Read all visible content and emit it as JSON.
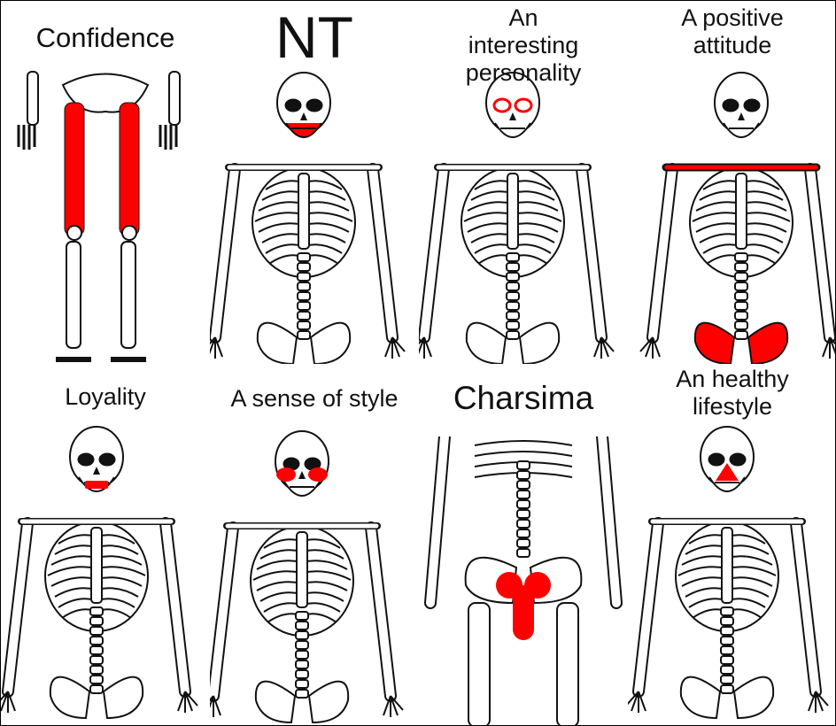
{
  "panels": [
    {
      "label": "Confidence",
      "highlight": "femurs"
    },
    {
      "label": "NT",
      "highlight": "jaw"
    },
    {
      "label": "An interesting personality",
      "highlight": "eye-sockets"
    },
    {
      "label": "A positive attitude",
      "highlight": "clavicles-and-pelvis"
    },
    {
      "label": "Loyality",
      "highlight": "mouth"
    },
    {
      "label": "A sense of style",
      "highlight": "cheekbones"
    },
    {
      "label": "Charsima",
      "highlight": "pelvis"
    },
    {
      "label": "An healthy lifestyle",
      "highlight": "nose"
    }
  ],
  "colors": {
    "highlight": "#ff0000",
    "bone_outline": "#111111",
    "background": "#ffffff"
  }
}
